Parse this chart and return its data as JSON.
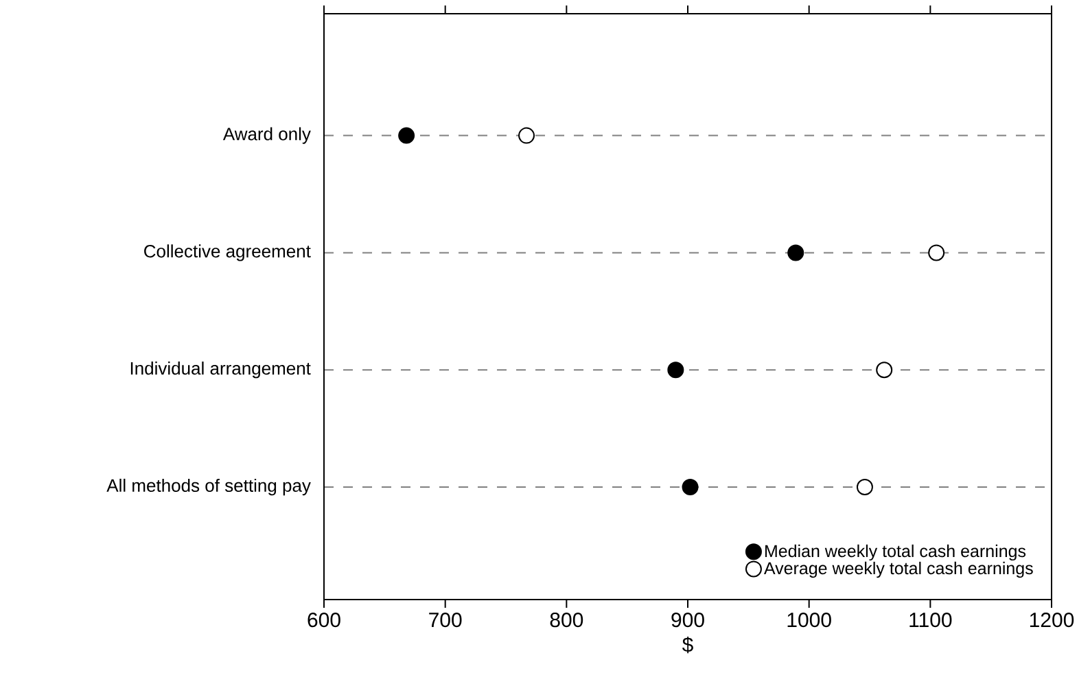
{
  "chart_data": {
    "type": "scatter",
    "orientation": "horizontal",
    "xlabel": "$",
    "categories": [
      "Award only",
      "Collective agreement",
      "Individual arrangement",
      "All methods of setting pay"
    ],
    "series": [
      {
        "name": "Median weekly total cash earnings",
        "color": "#000000",
        "values": [
          668,
          989,
          890,
          902
        ]
      },
      {
        "name": "Average weekly total cash earnings",
        "color": "#ffffff",
        "values": [
          767,
          1105,
          1062,
          1046
        ]
      }
    ],
    "xlim": [
      600,
      1200
    ],
    "xticks": [
      600,
      700,
      800,
      900,
      1000,
      1100,
      1200
    ],
    "grid": "y",
    "legend": "bottom right",
    "marker": "circle"
  }
}
